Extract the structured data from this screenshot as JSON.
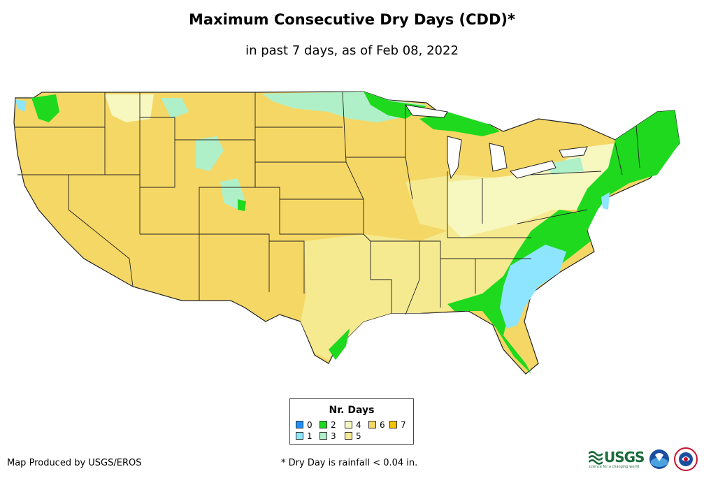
{
  "header": {
    "title": "Maximum Consecutive Dry Days (CDD)*",
    "subtitle": "in past 7 days, as of Feb 08, 2022"
  },
  "legend": {
    "title": "Nr. Days",
    "items": [
      {
        "label": "0",
        "color": "#1e90ff"
      },
      {
        "label": "1",
        "color": "#8ee5ff"
      },
      {
        "label": "2",
        "color": "#1ed91e"
      },
      {
        "label": "3",
        "color": "#b0f0c8"
      },
      {
        "label": "4",
        "color": "#f7f7c0"
      },
      {
        "label": "5",
        "color": "#f5ea90"
      },
      {
        "label": "6",
        "color": "#f5d765"
      },
      {
        "label": "7",
        "color": "#f2c200"
      }
    ]
  },
  "footer": {
    "credit": "Map Produced by USGS/EROS",
    "note": "* Dry Day is rainfall < 0.04 in."
  },
  "logos": {
    "usgs": "USGS",
    "usgs_tagline": "science for a changing world",
    "noaa": "noaa",
    "nws": "NWS"
  }
}
